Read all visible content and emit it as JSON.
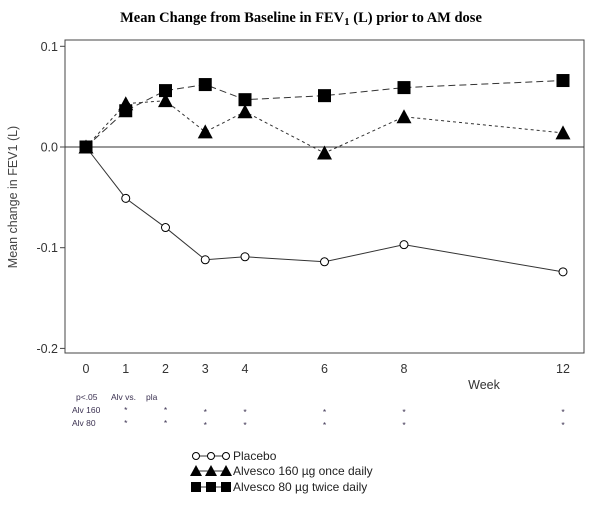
{
  "chart_data": {
    "type": "line",
    "title_main": "Mean Change from Baseline in FEV",
    "title_sub": "1",
    "title_tail": " (L) prior to AM dose",
    "xlabel": "Week",
    "ylabel": "Mean change in FEV1 (L)",
    "x": [
      0,
      1,
      2,
      3,
      4,
      6,
      8,
      12
    ],
    "x_tick_labels": [
      "0",
      "1",
      "2",
      "3",
      "4",
      "6",
      "8",
      "12"
    ],
    "xlim": [
      -0.55,
      12.5
    ],
    "ylim": [
      -0.205,
      0.107
    ],
    "y_ticks": [
      0.1,
      0.0,
      -0.1,
      -0.2
    ],
    "y_tick_labels": [
      "0.1",
      "0.0",
      "-0.1",
      "-0.2"
    ],
    "reference_line": 0.0,
    "grid": false,
    "legend_position": "bottom-center",
    "series": [
      {
        "name": "Placebo",
        "marker": "open-circle",
        "line_style": "solid",
        "values": [
          0.0,
          -0.051,
          -0.08,
          -0.112,
          -0.109,
          -0.114,
          -0.097,
          -0.124
        ]
      },
      {
        "name": "Alvesco 160 µg once daily",
        "marker": "filled-triangle",
        "line_style": "dotted",
        "values": [
          0.0,
          0.043,
          0.046,
          0.015,
          0.035,
          -0.006,
          0.03,
          0.014
        ]
      },
      {
        "name": "Alvesco 80 µg twice daily",
        "marker": "filled-square",
        "line_style": "dashed",
        "values": [
          0.0,
          0.036,
          0.056,
          0.062,
          0.047,
          0.051,
          0.059,
          0.066
        ]
      }
    ],
    "significance": {
      "header": [
        "p<.05",
        "Alv vs.",
        "pla"
      ],
      "rows": [
        {
          "label": "Alv 160",
          "weeks": [
            1,
            2,
            3,
            4,
            6,
            8,
            12
          ],
          "marker": "*"
        },
        {
          "label": "Alv 80",
          "weeks": [
            1,
            2,
            3,
            4,
            6,
            8,
            12
          ],
          "marker": "*"
        }
      ]
    }
  },
  "colors": {
    "line": "#333333",
    "marker": "#000000",
    "frame": "#444444",
    "annotation": "#3a3050"
  }
}
